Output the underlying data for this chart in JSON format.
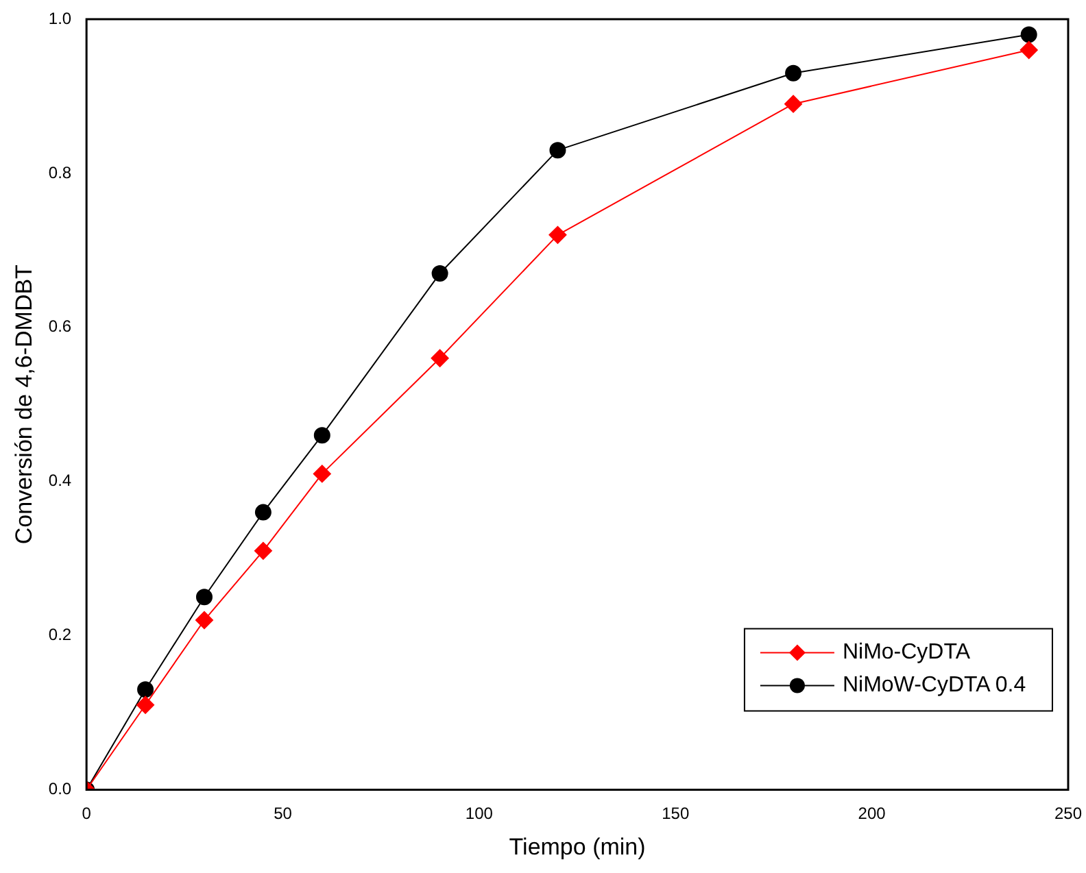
{
  "chart_data": {
    "type": "line",
    "xlabel": "Tiempo (min)",
    "ylabel": "Conversión de 4,6-DMDBT",
    "xlim": [
      0,
      250
    ],
    "xticks": [
      0,
      50,
      100,
      150,
      200,
      250
    ],
    "ylim": [
      0,
      1
    ],
    "yticks": [
      {
        "value": 0,
        "label": "0.0"
      },
      {
        "value": 0.2,
        "label": "0.2"
      },
      {
        "value": 0.4,
        "label": "0.4"
      },
      {
        "value": 0.6,
        "label": "0.6"
      },
      {
        "value": 0.8,
        "label": "0.8"
      },
      {
        "value": 1,
        "label": "1.0"
      }
    ],
    "x": [
      0,
      15,
      30,
      45,
      60,
      90,
      120,
      180,
      240
    ],
    "series": [
      {
        "name": "NiMo-CyDTA",
        "color": "#ff0000",
        "marker": "diamond",
        "values": [
          0,
          0.11,
          0.22,
          0.31,
          0.41,
          0.56,
          0.72,
          0.89,
          0.96
        ]
      },
      {
        "name": "NiMoW-CyDTA 0.4",
        "color": "#000000",
        "marker": "circle",
        "values": [
          0,
          0.13,
          0.25,
          0.36,
          0.46,
          0.67,
          0.83,
          0.93,
          0.98
        ]
      }
    ],
    "grid": false,
    "legend": "bottom right",
    "line_style": "solid"
  }
}
